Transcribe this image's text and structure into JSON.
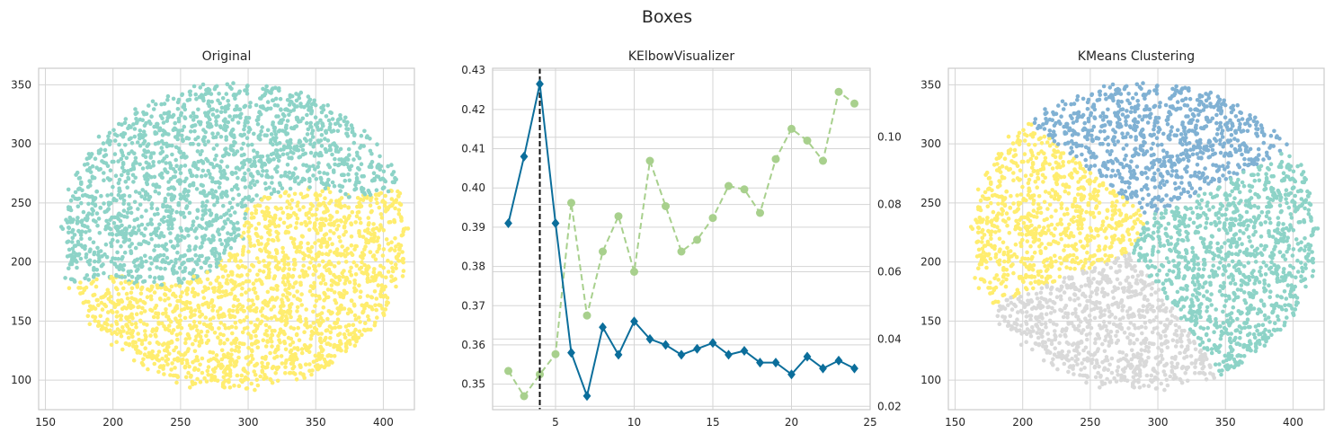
{
  "figure": {
    "title": "Boxes"
  },
  "colors": {
    "teal": "#8dd3c7",
    "yellow": "#ffed6f",
    "blue": "#80b1d3",
    "gray": "#d9d9d9",
    "elbow_blue": "#0b6e9b",
    "time_green": "#a8d08d",
    "elbow_line": "#111111",
    "grid": "#d5d5d5"
  },
  "chart_data": [
    {
      "type": "scatter",
      "title": "Original",
      "xlim": [
        145,
        423
      ],
      "ylim": [
        75,
        364
      ],
      "xticks": [
        150,
        200,
        250,
        300,
        350,
        400
      ],
      "yticks": [
        100,
        150,
        200,
        250,
        300,
        350
      ],
      "series": [
        {
          "color": "teal",
          "description_shape": "upper crescent",
          "point_count": 4000
        },
        {
          "color": "yellow",
          "description_shape": "lower crescent",
          "point_count": 4000
        }
      ],
      "legend": "none",
      "grid": true
    },
    {
      "type": "line",
      "title": "KElbowVisualizer",
      "x": [
        2,
        3,
        4,
        5,
        6,
        7,
        8,
        9,
        10,
        11,
        12,
        13,
        14,
        15,
        16,
        17,
        18,
        19,
        20,
        21,
        22,
        23,
        24
      ],
      "xlim": [
        1,
        25
      ],
      "xticks": [
        5,
        10,
        15,
        20,
        25
      ],
      "ylim": [
        0.3435,
        0.4305
      ],
      "yticks": [
        0.35,
        0.36,
        0.37,
        0.38,
        0.39,
        0.4,
        0.41,
        0.42,
        0.43
      ],
      "y2lim": [
        0.019,
        0.1205
      ],
      "y2ticks": [
        0.02,
        0.04,
        0.06,
        0.08,
        0.1
      ],
      "series": [
        {
          "axis": "left",
          "color": "elbow_blue",
          "marker": "diamond",
          "linestyle": "solid",
          "values": [
            0.391,
            0.408,
            0.4265,
            0.391,
            0.358,
            0.347,
            0.3645,
            0.3575,
            0.366,
            0.3615,
            0.36,
            0.3575,
            0.359,
            0.3605,
            0.3575,
            0.3585,
            0.3555,
            0.3555,
            0.3525,
            0.357,
            0.354,
            0.356,
            0.354
          ]
        },
        {
          "axis": "right",
          "color": "time_green",
          "marker": "circle",
          "linestyle": "dashed",
          "values": [
            0.0305,
            0.023,
            0.0295,
            0.0355,
            0.0805,
            0.047,
            0.066,
            0.0765,
            0.06,
            0.093,
            0.0795,
            0.066,
            0.0695,
            0.076,
            0.0855,
            0.0845,
            0.0775,
            0.0935,
            0.1025,
            0.099,
            0.093,
            0.1135,
            0.11
          ]
        }
      ],
      "elbow_k": 4,
      "grid": true
    },
    {
      "type": "scatter",
      "title": "KMeans Clustering",
      "xlim": [
        145,
        423
      ],
      "ylim": [
        75,
        364
      ],
      "xticks": [
        150,
        200,
        250,
        300,
        350,
        400
      ],
      "yticks": [
        100,
        150,
        200,
        250,
        300,
        350
      ],
      "series": [
        {
          "color": "blue",
          "description_shape": "top cluster",
          "point_count": 2000
        },
        {
          "color": "yellow",
          "description_shape": "left cluster",
          "point_count": 2000
        },
        {
          "color": "teal",
          "description_shape": "right cluster",
          "point_count": 2000
        },
        {
          "color": "gray",
          "description_shape": "bottom cluster",
          "point_count": 2000
        }
      ],
      "legend": "none",
      "grid": true
    }
  ]
}
